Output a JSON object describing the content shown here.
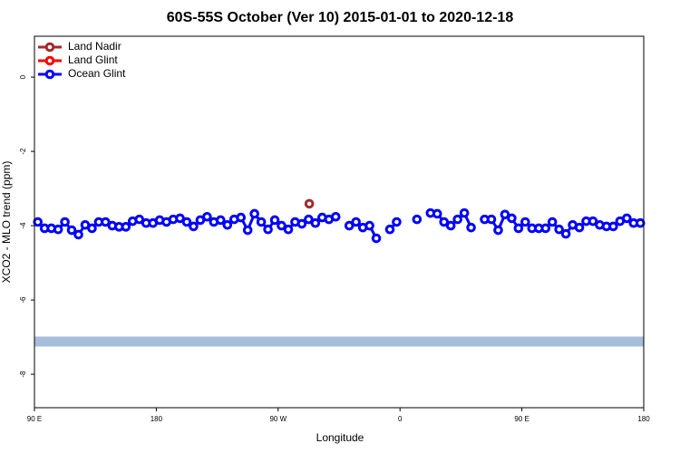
{
  "chart_data": {
    "type": "line",
    "title": "60S-55S October (Ver 10)   2015-01-01 to 2020-12-18",
    "x_label": "Longitude",
    "y_label": "XCO2 - MLO trend (ppm)",
    "xlim": [
      90,
      540
    ],
    "ylim": [
      -8.9,
      1.1
    ],
    "xticks": [
      {
        "value": 90,
        "label": "90 E"
      },
      180,
      {
        "value": 270,
        "label": "90 W"
      },
      {
        "value": 360,
        "label": "0"
      },
      {
        "value": 450,
        "label": "90 E"
      },
      {
        "value": 540,
        "label": "180"
      }
    ],
    "yticks": [
      0,
      -2,
      -4,
      -6,
      -8
    ],
    "legend": "top-left",
    "band": {
      "y": -7.12,
      "color": "#a7bddc"
    },
    "series": [
      {
        "name": "Land Nadir",
        "color": "#a52a2a",
        "x": [
          293
        ],
        "values": [
          -3.41
        ]
      },
      {
        "name": "Land Glint",
        "color": "#ff0000",
        "x": [],
        "values": []
      },
      {
        "name": "Ocean Glint",
        "color": "#0000ff",
        "x": [
          92.5,
          97.5,
          102.5,
          107.5,
          112.5,
          117.5,
          122.5,
          127.5,
          132.5,
          137.5,
          142.5,
          147.5,
          152.5,
          157.5,
          162.5,
          167.5,
          172.5,
          177.5,
          182.5,
          187.5,
          192.5,
          197.5,
          202.5,
          207.5,
          212.5,
          217.5,
          222.5,
          227.5,
          232.5,
          237.5,
          242.5,
          247.5,
          252.5,
          257.5,
          262.5,
          267.5,
          272.5,
          277.5,
          282.5,
          287.5,
          292.5,
          297.5,
          302.5,
          307.5,
          312.5,
          317.5,
          322.5,
          327.5,
          332.5,
          337.5,
          342.5,
          347.5,
          352.5,
          357.5,
          362.5,
          367.5,
          372.5,
          377.5,
          382.5,
          387.5,
          392.5,
          397.5,
          402.5,
          407.5,
          412.5,
          417.5,
          422.5,
          427.5,
          432.5,
          437.5,
          442.5,
          447.5,
          452.5,
          457.5,
          462.5,
          467.5,
          472.5,
          477.5,
          482.5,
          487.5,
          492.5,
          497.5,
          502.5,
          507.5,
          512.5,
          517.5,
          522.5,
          527.5,
          532.5,
          537.5
        ],
        "values": [
          -3.9,
          -4.07,
          -4.07,
          -4.1,
          -3.9,
          -4.12,
          -4.24,
          -3.98,
          -4.07,
          -3.9,
          -3.9,
          -4.0,
          -4.03,
          -4.03,
          -3.88,
          -3.83,
          -3.93,
          -3.93,
          -3.85,
          -3.9,
          -3.83,
          -3.8,
          -3.9,
          -4.02,
          -3.85,
          -3.76,
          -3.9,
          -3.85,
          -3.98,
          -3.83,
          -3.78,
          -4.12,
          -3.68,
          -3.9,
          -4.1,
          -3.85,
          -4.0,
          -4.1,
          -3.9,
          -3.95,
          -3.83,
          -3.93,
          -3.78,
          -3.83,
          -3.76,
          null,
          -4.0,
          -3.9,
          -4.05,
          -4.0,
          -4.34,
          null,
          -4.1,
          -3.9,
          null,
          null,
          -3.83,
          null,
          -3.66,
          -3.68,
          -3.9,
          -4.0,
          -3.83,
          -3.66,
          -4.05,
          null,
          -3.83,
          -3.83,
          -4.12,
          -3.7,
          -3.8,
          -4.07,
          -3.9,
          -4.07,
          -4.07,
          -4.07,
          -3.9,
          -4.1,
          -4.22,
          -3.98,
          -4.05,
          -3.88,
          -3.88,
          -3.98,
          -4.02,
          -4.02,
          -3.88,
          -3.8,
          -3.93,
          -3.93
        ]
      }
    ]
  }
}
